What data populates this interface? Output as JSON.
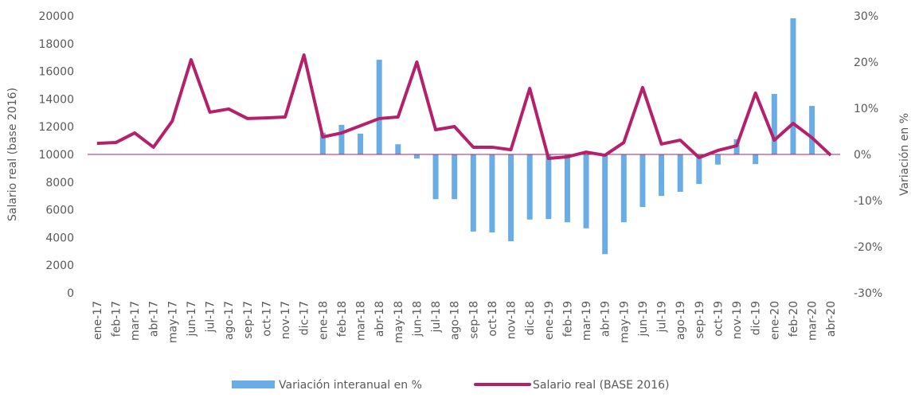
{
  "chart_data": {
    "type": "bar-line",
    "categories": [
      "ene-17",
      "feb-17",
      "mar-17",
      "abr-17",
      "may-17",
      "jun-17",
      "jul-17",
      "ago-17",
      "sep-17",
      "oct-17",
      "nov-17",
      "dic-17",
      "ene-18",
      "feb-18",
      "mar-18",
      "abr-18",
      "may-18",
      "jun-18",
      "jul-18",
      "ago-18",
      "sep-18",
      "oct-18",
      "nov-18",
      "dic-18",
      "ene-19",
      "feb-19",
      "mar-19",
      "abr-19",
      "may-19",
      "jun-19",
      "jul-19",
      "ago-19",
      "sep-19",
      "oct-19",
      "nov-19",
      "dic-19",
      "ene-20",
      "feb-20",
      "mar-20",
      "abr-20"
    ],
    "series": [
      {
        "name": "Variación interanual en %",
        "type": "bar",
        "axis": "y2",
        "color": "#6aade4",
        "values": [
          null,
          null,
          null,
          null,
          null,
          null,
          null,
          null,
          null,
          null,
          null,
          null,
          4.7,
          6.4,
          4.5,
          20.5,
          2.2,
          -0.9,
          -9.7,
          -9.7,
          -16.7,
          -16.9,
          -18.8,
          -14.1,
          -14.0,
          -14.7,
          -16.0,
          -21.6,
          -14.7,
          -11.4,
          -9.0,
          -8.1,
          -6.4,
          -2.2,
          3.3,
          -2.1,
          13.1,
          29.5,
          10.5,
          null
        ]
      },
      {
        "name": "Salario real (BASE 2016)",
        "type": "line",
        "color": "#b5206a",
        "values": [
          10800,
          10860,
          11550,
          10520,
          12410,
          16840,
          13050,
          13280,
          12590,
          12640,
          12700,
          17180,
          11260,
          11550,
          12070,
          12590,
          12700,
          16670,
          11780,
          12010,
          10520,
          10520,
          10340,
          14770,
          9710,
          9830,
          10170,
          9940,
          10860,
          14830,
          10750,
          11030,
          9770,
          10290,
          10630,
          14430,
          11030,
          12240,
          11210,
          9940
        ]
      }
    ],
    "y_label": "Salario real (base 2016)",
    "y2_label": "Variación en %",
    "ylim": [
      0,
      20000
    ],
    "yticks": [
      0,
      2000,
      4000,
      6000,
      8000,
      10000,
      12000,
      14000,
      16000,
      18000,
      20000
    ],
    "y2lim": [
      -30,
      30
    ],
    "y2ticks": [
      {
        "value": -30,
        "label": "-30%"
      },
      {
        "value": -20,
        "label": "-20%"
      },
      {
        "value": -10,
        "label": "-10%"
      },
      {
        "value": 0,
        "label": "0%"
      },
      {
        "value": 10,
        "label": "10%"
      },
      {
        "value": 20,
        "label": "20%"
      },
      {
        "value": 30,
        "label": "30%"
      }
    ],
    "legend": "bottom"
  }
}
